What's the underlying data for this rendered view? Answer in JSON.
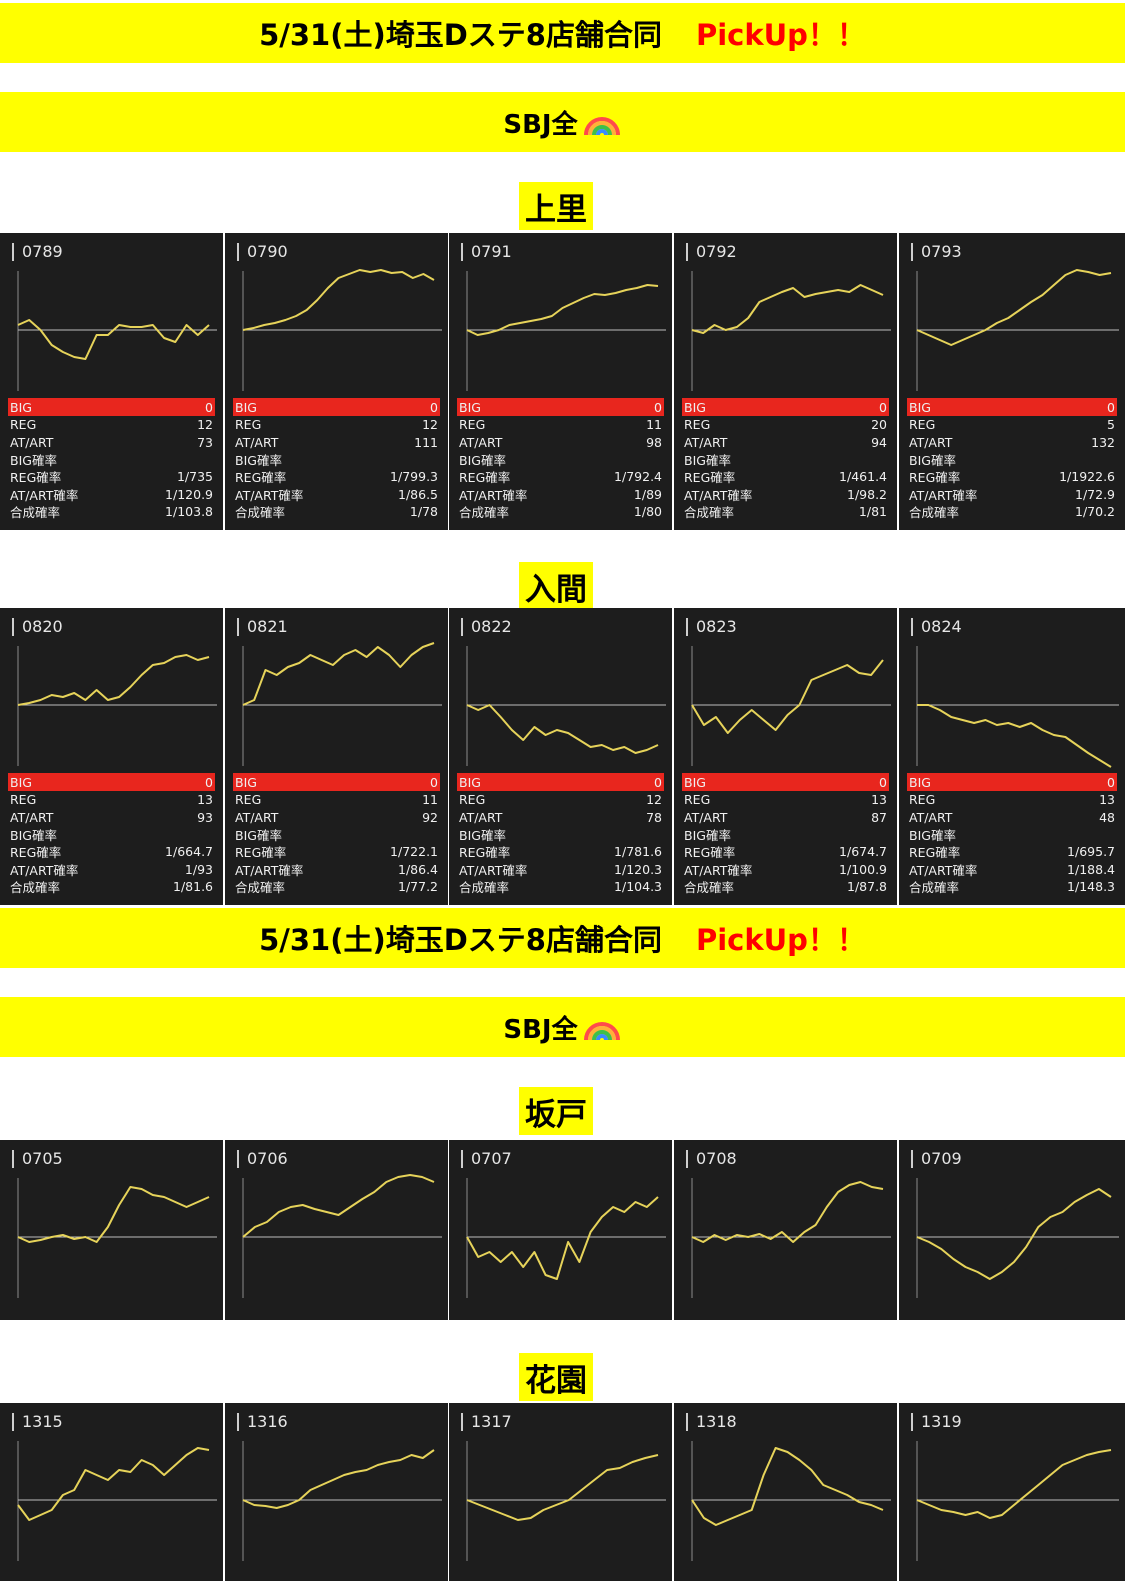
{
  "banner": {
    "title": "5/31(土)埼玉Dステ8店舗合同",
    "pickup": "PickUp！！",
    "category": "SBJ全"
  },
  "stat_labels": [
    "BIG",
    "REG",
    "AT/ART",
    "BIG確率",
    "REG確率",
    "AT/ART確率",
    "合成確率"
  ],
  "colors": {
    "banner": "#ffff00",
    "pickup": "#ff0000",
    "card_bg": "#1d1d1d",
    "big_bar": "#e8261e",
    "line": "#e6d35a"
  },
  "stores": [
    {
      "name": "上里",
      "machines": [
        {
          "id": "0789",
          "stats": [
            "0",
            "12",
            "73",
            "",
            "1/735",
            "1/120.9",
            "1/103.8"
          ],
          "trend": [
            0.05,
            0.1,
            0.0,
            -0.15,
            -0.22,
            -0.27,
            -0.29,
            -0.05,
            -0.05,
            0.05,
            0.03,
            0.03,
            0.05,
            -0.08,
            -0.12,
            0.05,
            -0.05,
            0.05
          ]
        },
        {
          "id": "0790",
          "stats": [
            "0",
            "12",
            "111",
            "",
            "1/799.3",
            "1/86.5",
            "1/78"
          ],
          "trend": [
            0.0,
            0.02,
            0.05,
            0.07,
            0.1,
            0.14,
            0.2,
            0.3,
            0.42,
            0.52,
            0.56,
            0.6,
            0.58,
            0.6,
            0.57,
            0.58,
            0.52,
            0.56,
            0.5
          ]
        },
        {
          "id": "0791",
          "stats": [
            "0",
            "11",
            "98",
            "",
            "1/792.4",
            "1/89",
            "1/80"
          ],
          "trend": [
            0.0,
            -0.05,
            -0.03,
            0.0,
            0.05,
            0.07,
            0.09,
            0.11,
            0.14,
            0.22,
            0.27,
            0.32,
            0.36,
            0.35,
            0.37,
            0.4,
            0.42,
            0.45,
            0.44
          ]
        },
        {
          "id": "0792",
          "stats": [
            "0",
            "20",
            "94",
            "",
            "1/461.4",
            "1/98.2",
            "1/81"
          ],
          "trend": [
            0.0,
            -0.03,
            0.05,
            0.0,
            0.03,
            0.12,
            0.28,
            0.33,
            0.38,
            0.42,
            0.33,
            0.36,
            0.38,
            0.4,
            0.38,
            0.45,
            0.4,
            0.35
          ]
        },
        {
          "id": "0793",
          "stats": [
            "0",
            "5",
            "132",
            "",
            "1/1922.6",
            "1/72.9",
            "1/70.2"
          ],
          "trend": [
            0.0,
            -0.05,
            -0.1,
            -0.15,
            -0.1,
            -0.05,
            0.0,
            0.07,
            0.12,
            0.2,
            0.28,
            0.35,
            0.45,
            0.55,
            0.6,
            0.58,
            0.55,
            0.57
          ]
        }
      ]
    },
    {
      "name": "入間",
      "machines": [
        {
          "id": "0820",
          "stats": [
            "0",
            "13",
            "93",
            "",
            "1/664.7",
            "1/93",
            "1/81.6"
          ],
          "trend": [
            0.0,
            0.02,
            0.05,
            0.1,
            0.08,
            0.12,
            0.05,
            0.15,
            0.05,
            0.08,
            0.18,
            0.3,
            0.4,
            0.42,
            0.48,
            0.5,
            0.45,
            0.48
          ]
        },
        {
          "id": "0821",
          "stats": [
            "0",
            "11",
            "92",
            "",
            "1/722.1",
            "1/86.4",
            "1/77.2"
          ],
          "trend": [
            0.0,
            0.05,
            0.35,
            0.3,
            0.38,
            0.42,
            0.5,
            0.45,
            0.4,
            0.5,
            0.55,
            0.48,
            0.58,
            0.5,
            0.38,
            0.5,
            0.58,
            0.62
          ]
        },
        {
          "id": "0822",
          "stats": [
            "0",
            "12",
            "78",
            "",
            "1/781.6",
            "1/120.3",
            "1/104.3"
          ],
          "trend": [
            0.0,
            -0.05,
            0.0,
            -0.12,
            -0.25,
            -0.35,
            -0.22,
            -0.3,
            -0.25,
            -0.28,
            -0.35,
            -0.42,
            -0.4,
            -0.45,
            -0.42,
            -0.48,
            -0.45,
            -0.4
          ]
        },
        {
          "id": "0823",
          "stats": [
            "0",
            "13",
            "87",
            "",
            "1/674.7",
            "1/100.9",
            "1/87.8"
          ],
          "trend": [
            0.0,
            -0.2,
            -0.12,
            -0.28,
            -0.15,
            -0.05,
            -0.15,
            -0.25,
            -0.1,
            0.0,
            0.25,
            0.3,
            0.35,
            0.4,
            0.32,
            0.3,
            0.45
          ]
        },
        {
          "id": "0824",
          "stats": [
            "0",
            "13",
            "48",
            "",
            "1/695.7",
            "1/188.4",
            "1/148.3"
          ],
          "trend": [
            0.0,
            0.0,
            -0.05,
            -0.12,
            -0.15,
            -0.18,
            -0.15,
            -0.2,
            -0.18,
            -0.22,
            -0.18,
            -0.25,
            -0.3,
            -0.32,
            -0.4,
            -0.48,
            -0.55,
            -0.62
          ]
        }
      ]
    },
    {
      "name": "坂戸",
      "machines": [
        {
          "id": "0705",
          "trend": [
            0.0,
            -0.05,
            -0.03,
            0.0,
            0.02,
            -0.02,
            0.0,
            -0.05,
            0.1,
            0.32,
            0.5,
            0.48,
            0.42,
            0.4,
            0.35,
            0.3,
            0.35,
            0.4
          ]
        },
        {
          "id": "0706",
          "trend": [
            0.0,
            0.1,
            0.15,
            0.25,
            0.3,
            0.32,
            0.28,
            0.25,
            0.22,
            0.3,
            0.38,
            0.45,
            0.55,
            0.6,
            0.62,
            0.6,
            0.55
          ]
        },
        {
          "id": "0707",
          "trend": [
            0.0,
            -0.2,
            -0.15,
            -0.25,
            -0.15,
            -0.3,
            -0.15,
            -0.38,
            -0.42,
            -0.05,
            -0.25,
            0.05,
            0.2,
            0.3,
            0.25,
            0.35,
            0.3,
            0.4
          ]
        },
        {
          "id": "0708",
          "trend": [
            0.0,
            -0.05,
            0.02,
            -0.03,
            0.02,
            0.0,
            0.03,
            -0.02,
            0.05,
            -0.05,
            0.05,
            0.12,
            0.3,
            0.45,
            0.52,
            0.55,
            0.5,
            0.48
          ]
        },
        {
          "id": "0709",
          "trend": [
            0.0,
            -0.05,
            -0.12,
            -0.22,
            -0.3,
            -0.35,
            -0.42,
            -0.35,
            -0.25,
            -0.1,
            0.1,
            0.2,
            0.25,
            0.35,
            0.42,
            0.48,
            0.4
          ]
        }
      ]
    },
    {
      "name": "花園",
      "machines": [
        {
          "id": "1315",
          "trend": [
            -0.05,
            -0.2,
            -0.15,
            -0.1,
            0.05,
            0.1,
            0.3,
            0.25,
            0.2,
            0.3,
            0.28,
            0.4,
            0.35,
            0.25,
            0.35,
            0.45,
            0.52,
            0.5
          ]
        },
        {
          "id": "1316",
          "trend": [
            0.0,
            -0.05,
            -0.06,
            -0.08,
            -0.05,
            0.0,
            0.1,
            0.15,
            0.2,
            0.25,
            0.28,
            0.3,
            0.35,
            0.38,
            0.4,
            0.45,
            0.42,
            0.5
          ]
        },
        {
          "id": "1317",
          "trend": [
            0.0,
            -0.05,
            -0.1,
            -0.15,
            -0.2,
            -0.18,
            -0.1,
            -0.05,
            0.0,
            0.1,
            0.2,
            0.3,
            0.32,
            0.38,
            0.42,
            0.45
          ]
        },
        {
          "id": "1318",
          "trend": [
            0.0,
            -0.18,
            -0.25,
            -0.2,
            -0.15,
            -0.1,
            0.25,
            0.52,
            0.48,
            0.4,
            0.3,
            0.15,
            0.1,
            0.05,
            -0.02,
            -0.05,
            -0.1
          ]
        },
        {
          "id": "1319",
          "trend": [
            0.0,
            -0.05,
            -0.1,
            -0.12,
            -0.15,
            -0.12,
            -0.18,
            -0.15,
            -0.05,
            0.05,
            0.15,
            0.25,
            0.35,
            0.4,
            0.45,
            0.48,
            0.5
          ]
        }
      ]
    }
  ]
}
